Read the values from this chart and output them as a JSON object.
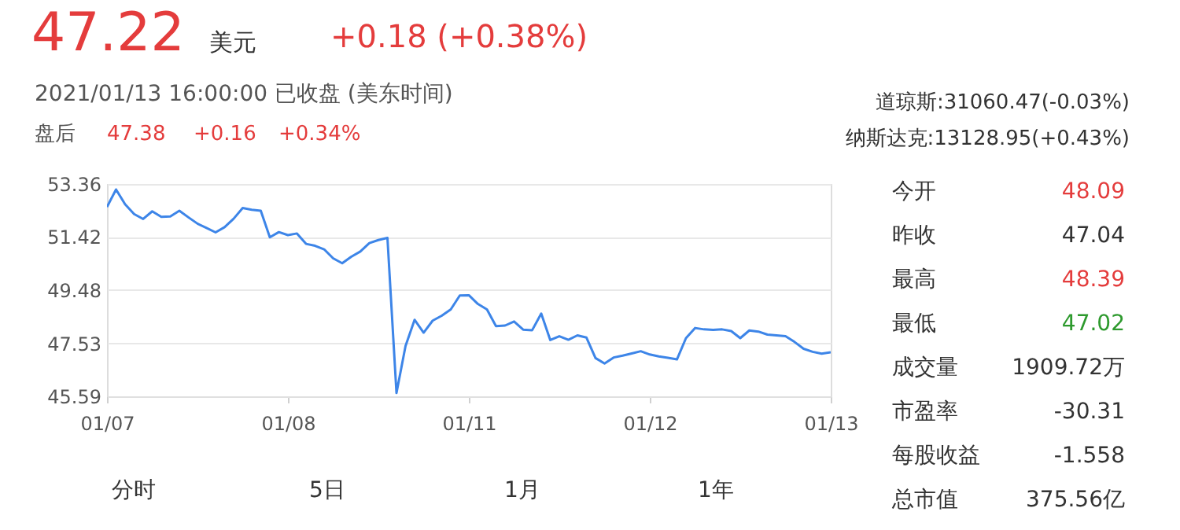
{
  "chart_data": {
    "type": "line",
    "title": "47.22",
    "subtitle": "美元",
    "annotations": [
      "+0.18 (+0.38%)",
      "2021/01/13 16:00:00  已收盘  (美东时间)",
      "盘后",
      "47.38",
      "+0.16",
      "+0.34%",
      "道琼斯:31060.47(-0.03%)",
      "纳斯达克:13128.95(+0.43%)",
      "今开",
      "48.09",
      "昨收",
      "47.04",
      "最高",
      "48.39",
      "最低",
      "47.02",
      "成交量",
      "1909.72万",
      "市盈率",
      "-30.31",
      "每股收益",
      "-1.558",
      "总市值",
      "375.56亿",
      "分时",
      "5日",
      "1月",
      "1年"
    ],
    "categories": [
      "01/07",
      null,
      null,
      null,
      null,
      null,
      null,
      null,
      null,
      null,
      null,
      null,
      null,
      null,
      null,
      null,
      null,
      null,
      null,
      null,
      "01/08",
      null,
      null,
      null,
      null,
      null,
      null,
      null,
      null,
      null,
      null,
      null,
      null,
      null,
      null,
      null,
      null,
      null,
      null,
      null,
      "01/11",
      null,
      null,
      null,
      null,
      null,
      null,
      null,
      null,
      null,
      null,
      null,
      null,
      null,
      null,
      null,
      null,
      null,
      null,
      null,
      "01/12",
      null,
      null,
      null,
      null,
      null,
      null,
      null,
      null,
      null,
      null,
      null,
      null,
      null,
      null,
      null,
      null,
      null,
      null,
      null,
      "01/13"
    ],
    "series": [
      {
        "color": "#3d85e8",
        "values": [
          52.52,
          53.16,
          52.62,
          52.26,
          52.08,
          52.36,
          52.16,
          52.17,
          52.38,
          52.14,
          51.91,
          51.75,
          51.59,
          51.78,
          52.09,
          52.48,
          52.42,
          52.38,
          51.41,
          51.6,
          51.49,
          51.55,
          51.17,
          51.1,
          50.97,
          50.64,
          50.46,
          50.7,
          50.89,
          51.2,
          51.31,
          51.39,
          45.71,
          47.43,
          48.39,
          47.92,
          48.36,
          48.54,
          48.77,
          49.28,
          49.29,
          48.97,
          48.77,
          48.16,
          48.18,
          48.33,
          48.03,
          48.01,
          48.62,
          47.65,
          47.79,
          47.66,
          47.82,
          47.74,
          46.99,
          46.79,
          47.01,
          47.08,
          47.16,
          47.24,
          47.12,
          47.05,
          47.0,
          46.94,
          47.72,
          48.09,
          48.04,
          48.02,
          48.04,
          47.98,
          47.72,
          48.0,
          47.96,
          47.85,
          47.82,
          47.79,
          47.58,
          47.33,
          47.22,
          47.15,
          47.2
        ]
      }
    ],
    "ylim": [
      45.59,
      53.36
    ],
    "yticks": [
      45.59,
      47.53,
      49.48,
      51.42,
      53.36
    ],
    "grid": "y"
  }
}
